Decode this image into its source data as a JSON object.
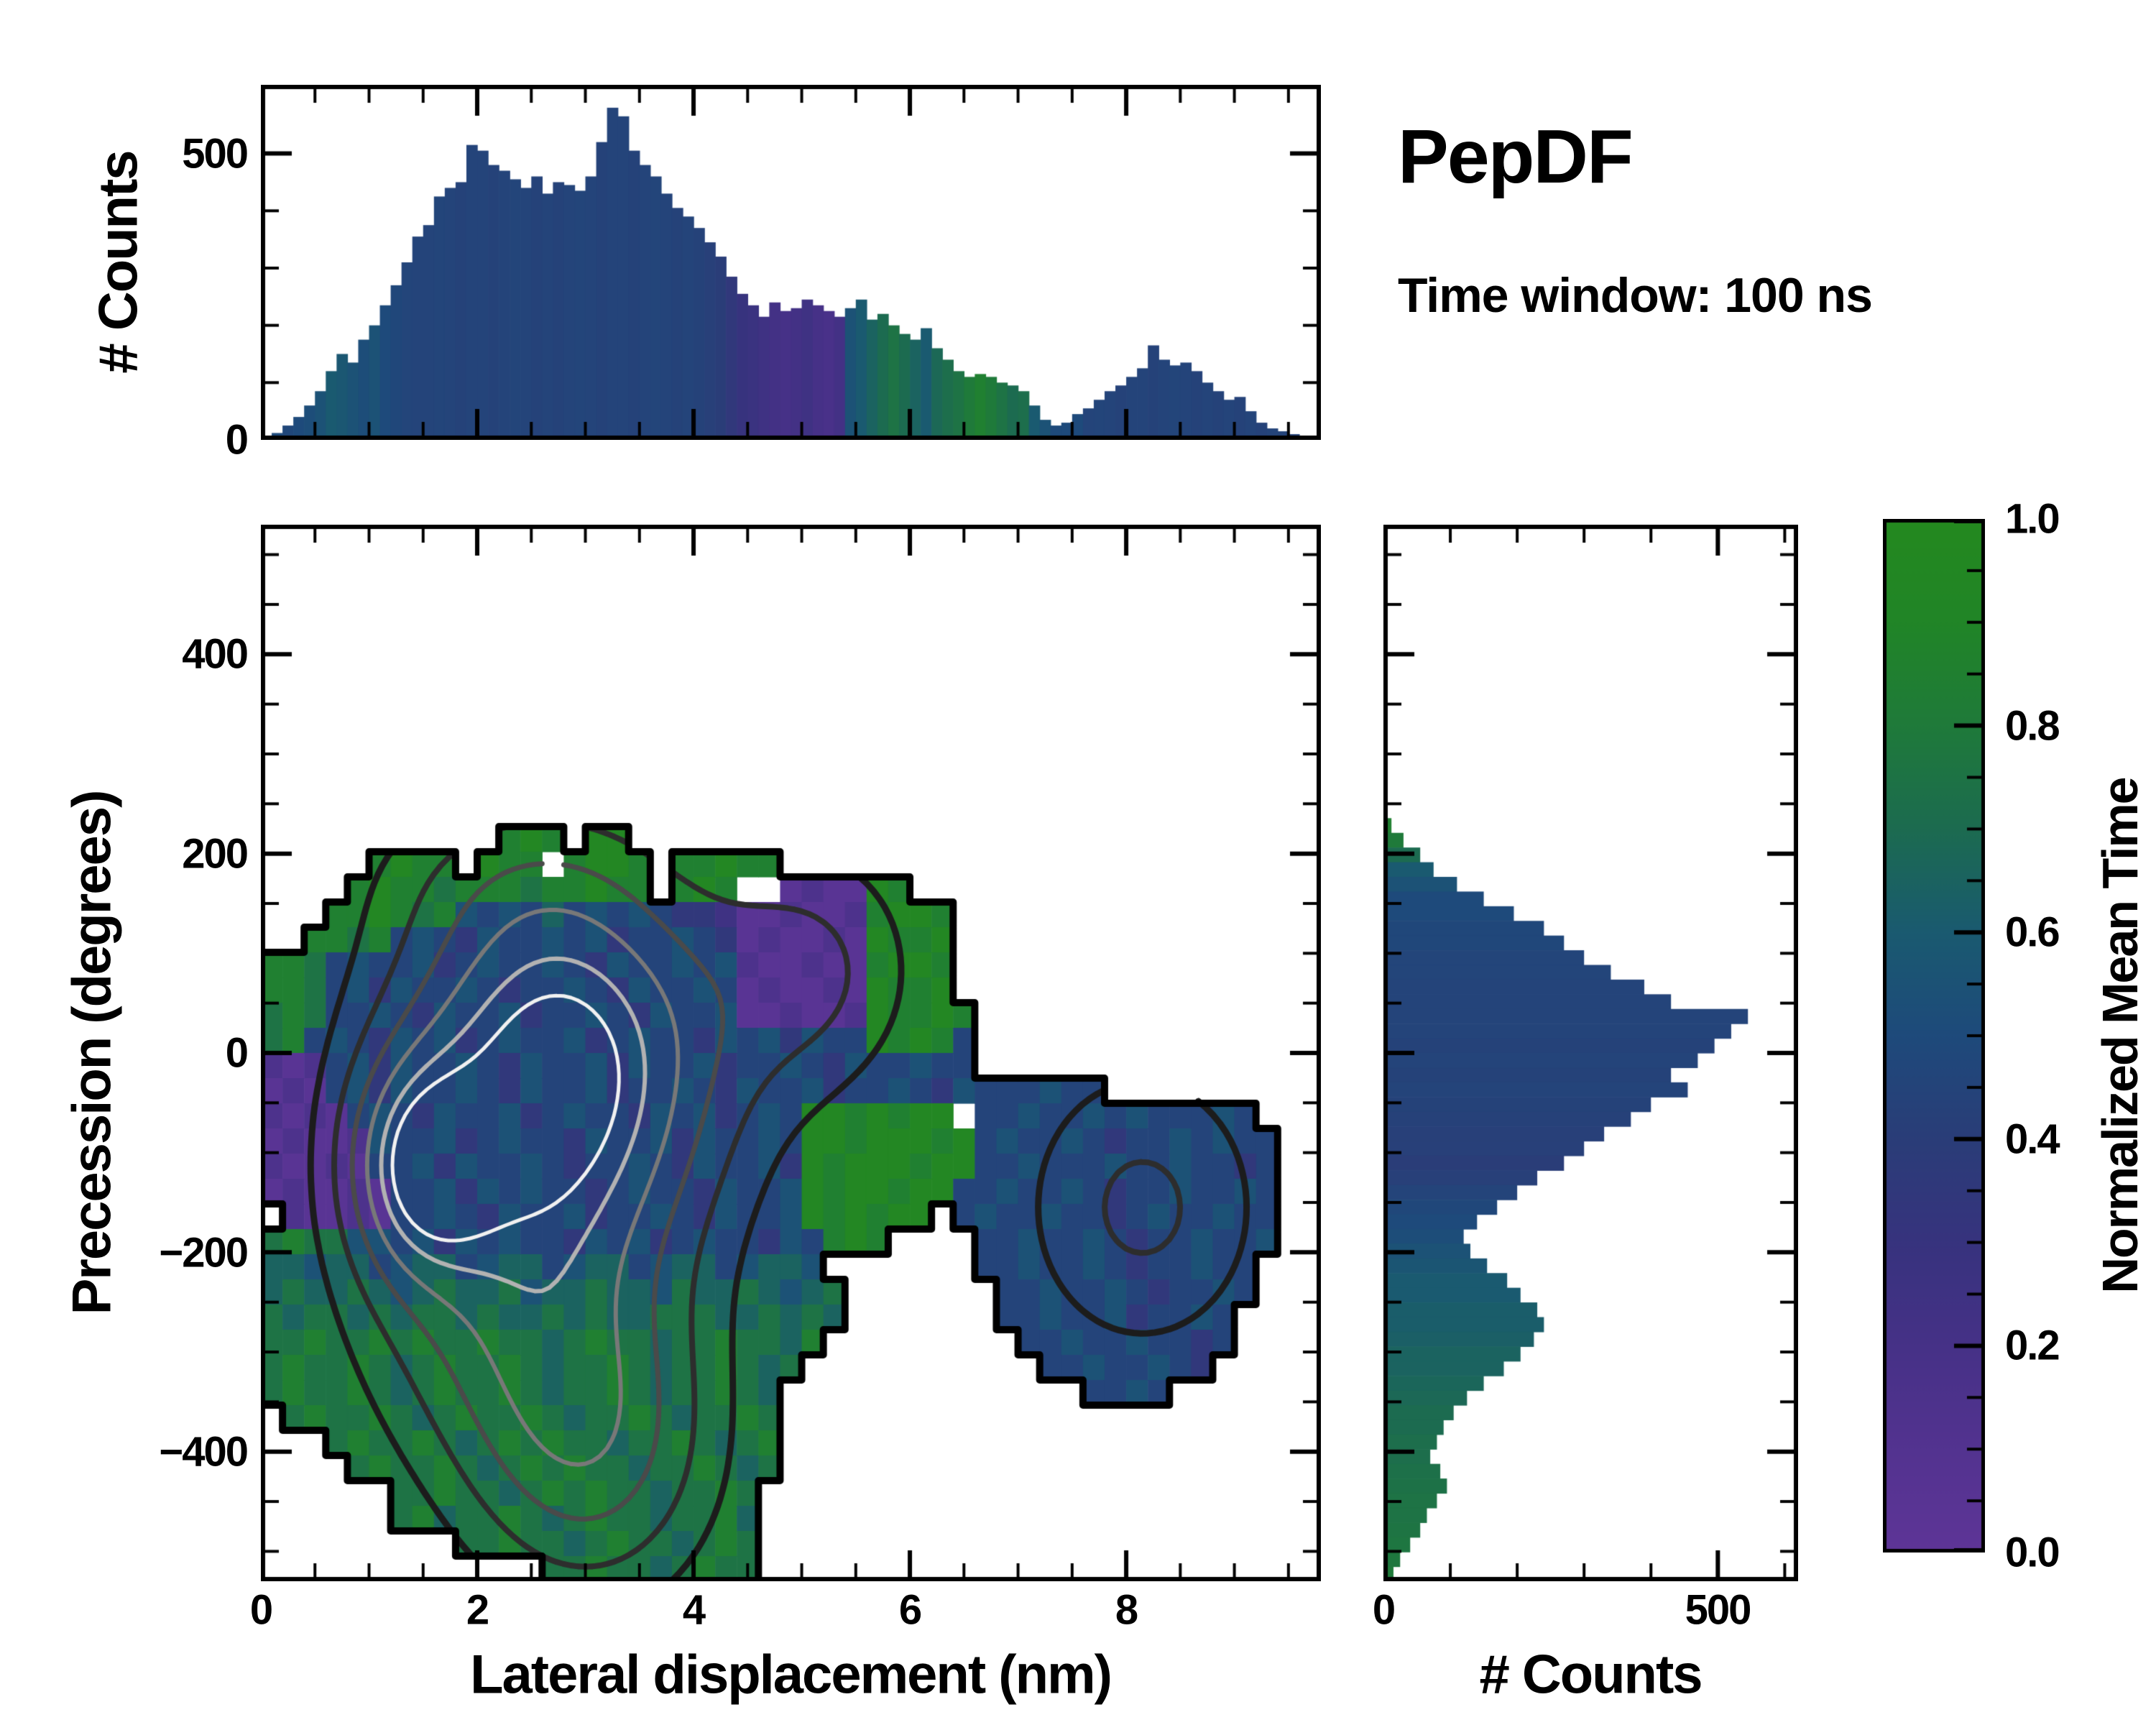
{
  "title": "PepDF",
  "subtitle": "Time window: 100 ns",
  "colormap": {
    "stops": [
      [
        0.0,
        "#5e3597"
      ],
      [
        0.1,
        "#533390"
      ],
      [
        0.2,
        "#463187"
      ],
      [
        0.3,
        "#37337e"
      ],
      [
        0.4,
        "#2a3d78"
      ],
      [
        0.5,
        "#1e4a7b"
      ],
      [
        0.6,
        "#1a5a70"
      ],
      [
        0.7,
        "#1c6b50"
      ],
      [
        0.8,
        "#1f7a3a"
      ],
      [
        0.9,
        "#218527"
      ],
      [
        1.0,
        "#24891f"
      ]
    ]
  },
  "axes": {
    "top_hist": {
      "ylabel": "# Counts",
      "yticks": [
        "500",
        "0"
      ]
    },
    "main": {
      "xlabel": "Lateral displacement (nm)",
      "ylabel": "Precession (degrees)",
      "xticks": [
        "0",
        "2",
        "4",
        "6",
        "8"
      ],
      "yticks": [
        "400",
        "200",
        "0",
        "−200",
        "−400"
      ]
    },
    "right_hist": {
      "xlabel": "# Counts",
      "xticks": [
        "0",
        "500"
      ]
    },
    "colorbar": {
      "label": "Normalized Mean Time",
      "ticks": [
        "1.0",
        "0.8",
        "0.6",
        "0.4",
        "0.2",
        "0.0"
      ]
    }
  },
  "chart_data": [
    {
      "id": "top_histogram",
      "type": "bar",
      "orientation": "vertical",
      "ylabel": "# Counts",
      "x_start": 0.0,
      "bin_width": 0.1,
      "xlim": [
        0,
        9.8
      ],
      "ylim": [
        0,
        620
      ],
      "yticks_labeled": [
        0,
        500
      ],
      "counts": [
        4,
        12,
        25,
        40,
        60,
        85,
        120,
        150,
        135,
        175,
        200,
        235,
        270,
        310,
        355,
        375,
        425,
        440,
        450,
        515,
        505,
        480,
        470,
        455,
        440,
        460,
        430,
        450,
        445,
        435,
        460,
        520,
        580,
        565,
        505,
        480,
        460,
        430,
        405,
        390,
        370,
        345,
        320,
        285,
        255,
        235,
        215,
        240,
        225,
        230,
        245,
        235,
        225,
        215,
        230,
        245,
        210,
        220,
        200,
        185,
        175,
        195,
        160,
        140,
        120,
        110,
        115,
        110,
        100,
        95,
        85,
        60,
        35,
        25,
        30,
        45,
        55,
        70,
        85,
        95,
        110,
        125,
        165,
        140,
        130,
        135,
        120,
        100,
        85,
        70,
        75,
        50,
        30,
        20,
        15,
        10
      ],
      "mean_time_per_bin": [
        0.5,
        0.5,
        0.48,
        0.5,
        0.52,
        0.55,
        0.6,
        0.58,
        0.55,
        0.52,
        0.55,
        0.5,
        0.48,
        0.46,
        0.45,
        0.45,
        0.46,
        0.45,
        0.44,
        0.45,
        0.45,
        0.44,
        0.45,
        0.46,
        0.45,
        0.44,
        0.45,
        0.44,
        0.45,
        0.46,
        0.45,
        0.44,
        0.45,
        0.45,
        0.44,
        0.45,
        0.46,
        0.45,
        0.44,
        0.45,
        0.44,
        0.42,
        0.4,
        0.35,
        0.3,
        0.28,
        0.25,
        0.22,
        0.2,
        0.22,
        0.25,
        0.2,
        0.18,
        0.22,
        0.55,
        0.6,
        0.65,
        0.7,
        0.75,
        0.7,
        0.65,
        0.6,
        0.68,
        0.72,
        0.75,
        0.8,
        0.85,
        0.8,
        0.75,
        0.7,
        0.72,
        0.6,
        0.55,
        0.5,
        0.5,
        0.5,
        0.45,
        0.46,
        0.45,
        0.44,
        0.45,
        0.45,
        0.44,
        0.45,
        0.46,
        0.45,
        0.44,
        0.45,
        0.44,
        0.45,
        0.44,
        0.45,
        0.44,
        0.45,
        0.45,
        0.44
      ]
    },
    {
      "id": "joint_heatmap",
      "type": "heatmap",
      "xlabel": "Lateral displacement (nm)",
      "ylabel": "Precession (degrees)",
      "value_label": "Normalized Mean Time",
      "xlim": [
        0,
        9.8
      ],
      "ylim": [
        -530,
        530
      ],
      "xticks_labeled": [
        0,
        2,
        4,
        6,
        8
      ],
      "yticks_labeled": [
        400,
        200,
        0,
        -200,
        -400
      ],
      "grid_cols": 49,
      "grid_rows": 42,
      "value_encoding": "char '.' = no data; digit d = normalized mean time (d+0.5)/10",
      "cells": [
        "",
        "",
        "",
        "",
        "",
        "",
        "",
        "",
        "",
        "",
        "",
        "",
        "...........898.99",
        ".....8988.988.8998.88988",
        "....89887888788988.898..010098",
        "...88987854546454543320010018998",
        "..887845435445453445430100109889",
        "88745445345445435445451001008998",
        "88745354454344543544540100109889",
        "787445435445344543544500100198898",
        "784543545345445345443545354498984",
        "101453544543544535445344543544544",
        "010453544543544534454354453445435444544",
        "10104543544534544354534549989899.4454454544454",
        "01001544534544354453544549989998945445434454544",
        "10010445354454344543544539899989944544454454434",
        "01001044535454434544354459899899445445434454454",
        ".100104454354453445435445989899.454454434544544",
        "78775545354544354534544354898....44544543445445",
        "66566456645664566456645665.......4454454344544",
        "676676567667566766576676567.......445445434454",
        "767767677676676766777667676.......44544534454",
        "77877878778776787767787768.........4454454434",
        "7877876787787677876778767...........44544543",
        "787787678778767787677876..............4454",
        ".78778767877876778767787",
        "...787787678787767787678",
        "....78778767878776778767",
        "......77877678787767787",
        "......78677876787767786",
        ".........77877678776787",
        ".............7787767877"
      ],
      "density_contours": {
        "description": "count-density contours overlaid on heatmap",
        "gaussians": [
          {
            "x": 2.75,
            "y": -15,
            "sx": 1.05,
            "sy": 145,
            "a": 1.0
          },
          {
            "x": 1.45,
            "y": -115,
            "sx": 0.45,
            "sy": 75,
            "a": 0.6
          },
          {
            "x": 3.05,
            "y": -395,
            "sx": 0.8,
            "sy": 110,
            "a": 0.5
          },
          {
            "x": 2.2,
            "y": -255,
            "sx": 0.95,
            "sy": 120,
            "a": 0.35
          },
          {
            "x": 8.15,
            "y": -155,
            "sx": 0.8,
            "sy": 105,
            "a": 0.33
          },
          {
            "x": 5.1,
            "y": 85,
            "sx": 0.7,
            "sy": 90,
            "a": 0.3
          },
          {
            "x": 2.3,
            "y": 185,
            "sx": 0.95,
            "sy": 55,
            "a": 0.1
          }
        ],
        "levels": [
          0.16,
          0.3,
          0.46,
          0.62,
          0.78,
          0.9
        ],
        "level_colors": [
          "#1c1c1c",
          "#2d2d2d",
          "#4a4a4a",
          "#787878",
          "#b2b2b2",
          "#f1f1f1"
        ],
        "level_widths": [
          9,
          8,
          7,
          6,
          6,
          5
        ],
        "boundary_color": "#000000",
        "boundary_width": 10
      }
    },
    {
      "id": "right_histogram",
      "type": "bar",
      "orientation": "horizontal",
      "xlabel": "# Counts",
      "y_start": 530,
      "bin_height": -14.722,
      "xlim": [
        0,
        620
      ],
      "ylim": [
        -530,
        530
      ],
      "xticks_labeled": [
        0,
        500
      ],
      "counts": [
        0,
        0,
        0,
        0,
        0,
        0,
        0,
        0,
        0,
        0,
        0,
        0,
        0,
        0,
        0,
        0,
        0,
        0,
        0,
        0,
        12,
        30,
        55,
        75,
        110,
        150,
        195,
        240,
        270,
        300,
        340,
        390,
        430,
        545,
        520,
        495,
        470,
        430,
        455,
        400,
        370,
        330,
        300,
        270,
        230,
        200,
        170,
        140,
        120,
        130,
        155,
        185,
        205,
        230,
        240,
        225,
        205,
        180,
        150,
        125,
        105,
        90,
        80,
        70,
        85,
        95,
        80,
        65,
        55,
        40,
        25,
        15
      ],
      "mean_time_per_bin": [
        0,
        0,
        0,
        0,
        0,
        0,
        0,
        0,
        0,
        0,
        0,
        0,
        0,
        0,
        0,
        0,
        0,
        0,
        0,
        0,
        0.85,
        0.8,
        0.7,
        0.6,
        0.55,
        0.5,
        0.5,
        0.48,
        0.48,
        0.46,
        0.46,
        0.45,
        0.45,
        0.45,
        0.45,
        0.44,
        0.45,
        0.44,
        0.45,
        0.44,
        0.43,
        0.42,
        0.42,
        0.4,
        0.42,
        0.45,
        0.48,
        0.5,
        0.52,
        0.55,
        0.57,
        0.6,
        0.6,
        0.62,
        0.62,
        0.63,
        0.65,
        0.65,
        0.67,
        0.68,
        0.7,
        0.7,
        0.72,
        0.72,
        0.73,
        0.74,
        0.75,
        0.75,
        0.76,
        0.77,
        0.78,
        0.8
      ]
    }
  ]
}
